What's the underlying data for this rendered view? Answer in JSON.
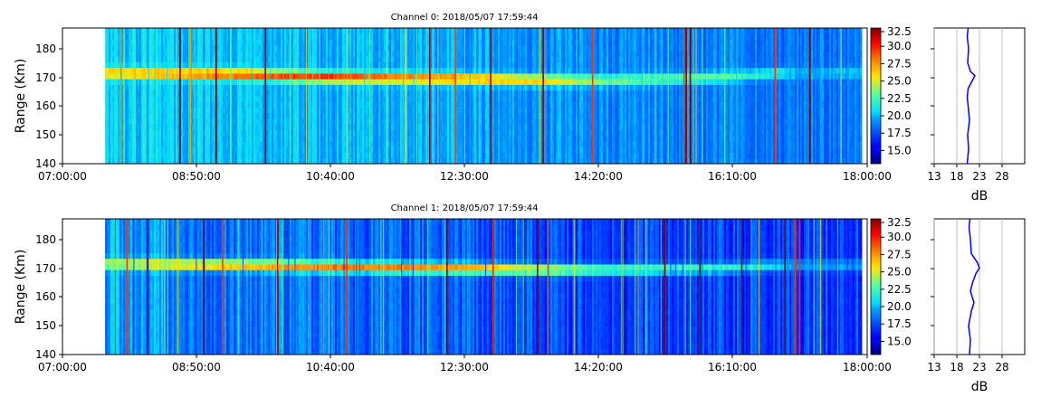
{
  "chart_data": [
    {
      "type": "heatmap",
      "title": "Channel 0: 2018/05/07 17:59:44",
      "ylabel": "Range (Km)",
      "x_range": [
        "07:00:00",
        "18:00:00"
      ],
      "x_ticks": [
        "07:00:00",
        "08:50:00",
        "10:40:00",
        "12:30:00",
        "14:20:00",
        "16:10:00",
        "18:00:00"
      ],
      "data_start": "07:35:00",
      "data_end": "17:55:00",
      "ylim": [
        140,
        187
      ],
      "y_ticks": [
        140,
        150,
        160,
        170,
        180
      ],
      "colorbar": {
        "range": [
          13.5,
          33.0
        ],
        "ticks": [
          "15.0",
          "17.5",
          "20.0",
          "22.5",
          "25.0",
          "27.5",
          "30.0",
          "32.5"
        ],
        "colormap": "jet"
      },
      "echo_band": {
        "center_km": [
          [
            7.6,
            171.5
          ],
          [
            9.5,
            171.0
          ],
          [
            10.6,
            170.0
          ],
          [
            12.5,
            169.5
          ],
          [
            13.6,
            169.0
          ],
          [
            14.5,
            169.0
          ],
          [
            16.0,
            170.0
          ],
          [
            16.8,
            171.5
          ]
        ],
        "peak_db": [
          [
            7.6,
            27.5
          ],
          [
            9.0,
            29.5
          ],
          [
            10.6,
            30.0
          ],
          [
            12.5,
            29.0
          ],
          [
            13.5,
            27.0
          ],
          [
            14.5,
            24.0
          ],
          [
            16.0,
            23.5
          ],
          [
            16.8,
            22.0
          ],
          [
            17.0,
            20.5
          ]
        ]
      },
      "background_db": [
        [
          7.58,
          21.0
        ],
        [
          10.0,
          20.5
        ],
        [
          12.5,
          20.0
        ],
        [
          14.0,
          19.5
        ],
        [
          17.0,
          19.0
        ],
        [
          17.9,
          19.0
        ]
      ],
      "profile": {
        "xlabel": "dB",
        "x_ticks": [
          13,
          18,
          23,
          28
        ],
        "xlim": [
          13,
          33
        ],
        "color": "#0000ff",
        "points": [
          [
            20.3,
            140
          ],
          [
            20.6,
            145
          ],
          [
            20.4,
            150
          ],
          [
            20.8,
            155
          ],
          [
            20.5,
            160
          ],
          [
            20.3,
            163
          ],
          [
            20.5,
            166
          ],
          [
            21.5,
            169
          ],
          [
            22.0,
            170.5
          ],
          [
            21.0,
            172
          ],
          [
            20.4,
            175
          ],
          [
            20.6,
            180
          ],
          [
            20.3,
            184
          ],
          [
            20.5,
            187
          ]
        ]
      }
    },
    {
      "type": "heatmap",
      "title": "Channel 1: 2018/05/07 17:59:44",
      "ylabel": "Range (Km)",
      "x_range": [
        "07:00:00",
        "18:00:00"
      ],
      "x_ticks": [
        "07:00:00",
        "08:50:00",
        "10:40:00",
        "12:30:00",
        "14:20:00",
        "16:10:00",
        "18:00:00"
      ],
      "data_start": "07:35:00",
      "data_end": "17:55:00",
      "ylim": [
        140,
        187
      ],
      "y_ticks": [
        140,
        150,
        160,
        170,
        180
      ],
      "colorbar": {
        "range": [
          13.5,
          33.0
        ],
        "ticks": [
          "15.0",
          "17.5",
          "20.0",
          "22.5",
          "25.0",
          "27.5",
          "30.0",
          "32.5"
        ],
        "colormap": "jet"
      },
      "echo_band": {
        "center_km": [
          [
            7.6,
            171.5
          ],
          [
            9.5,
            171.0
          ],
          [
            10.6,
            170.5
          ],
          [
            12.5,
            170.0
          ],
          [
            13.6,
            169.5
          ],
          [
            14.5,
            169.5
          ],
          [
            16.0,
            170.0
          ],
          [
            16.8,
            171.0
          ]
        ],
        "peak_db": [
          [
            7.6,
            25.5
          ],
          [
            9.0,
            27.5
          ],
          [
            10.6,
            28.5
          ],
          [
            12.5,
            28.0
          ],
          [
            13.5,
            26.0
          ],
          [
            14.5,
            23.5
          ],
          [
            16.0,
            22.5
          ],
          [
            16.8,
            21.5
          ],
          [
            17.0,
            20.0
          ]
        ]
      },
      "background_db": [
        [
          7.58,
          20.0
        ],
        [
          9.0,
          19.0
        ],
        [
          11.0,
          18.5
        ],
        [
          13.0,
          18.0
        ],
        [
          14.0,
          17.5
        ],
        [
          17.0,
          17.5
        ],
        [
          17.9,
          17.5
        ]
      ],
      "profile": {
        "xlabel": "dB",
        "x_ticks": [
          13,
          18,
          23,
          28
        ],
        "xlim": [
          13,
          33
        ],
        "color": "#0000ff",
        "points": [
          [
            20.8,
            140
          ],
          [
            21.0,
            145
          ],
          [
            20.6,
            150
          ],
          [
            21.2,
            155
          ],
          [
            21.8,
            158
          ],
          [
            21.0,
            162
          ],
          [
            21.5,
            165
          ],
          [
            22.2,
            168
          ],
          [
            23.0,
            170
          ],
          [
            22.5,
            172
          ],
          [
            21.2,
            175
          ],
          [
            21.0,
            180
          ],
          [
            20.7,
            184
          ],
          [
            20.9,
            187
          ]
        ]
      }
    }
  ]
}
